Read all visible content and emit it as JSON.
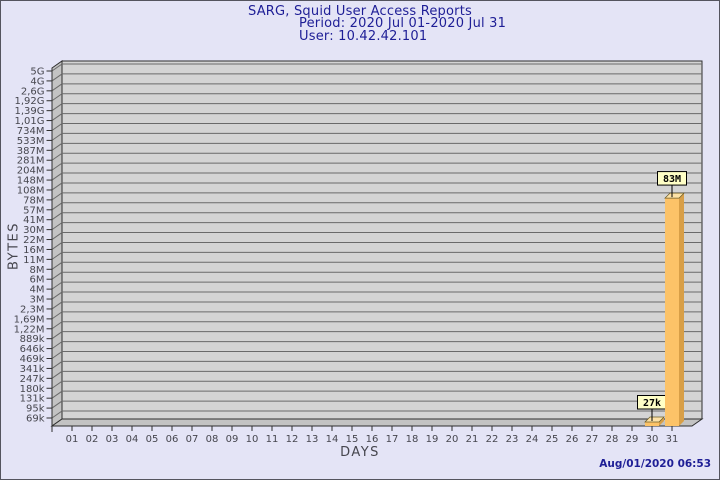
{
  "header": {
    "title": "SARG, Squid User Access Reports",
    "period": "Period: 2020 Jul 01-2020 Jul 31",
    "user": "User: 10.42.42.101"
  },
  "footer": {
    "timestamp": "Aug/01/2020 06:53"
  },
  "colors": {
    "page_background": "#E4E4F6",
    "title_text": "#1E1E96",
    "axis_text": "#46464E",
    "plot_back_wall": "#D4D4D4",
    "plot_side_wall": "#C3C3C3",
    "grid_line": "#6A6A6A",
    "wall_edge": "#2E2E2E",
    "bar_front": "#FCC368",
    "bar_side": "#D89F47",
    "bar_top": "#FDE2A7",
    "value_box_bg": "#FFFFC6",
    "value_box_border": "#000000"
  },
  "chart_data": {
    "type": "bar",
    "title": "SARG, Squid User Access Reports",
    "subtitle": "Period: 2020 Jul 01-2020 Jul 31",
    "user": "User: 10.42.42.101",
    "xlabel": "DAYS",
    "ylabel": "BYTES",
    "y_scale": "log",
    "y_range_bytes": [
      69000,
      5000000000
    ],
    "grid": "horizontal",
    "legend_position": "none",
    "y_tick_labels": [
      "5G",
      "4G",
      "2,6G",
      "1,92G",
      "1,39G",
      "1,01G",
      "734M",
      "533M",
      "387M",
      "281M",
      "204M",
      "148M",
      "108M",
      "78M",
      "57M",
      "41M",
      "30M",
      "22M",
      "16M",
      "11M",
      "8M",
      "6M",
      "4M",
      "3M",
      "2,3M",
      "1,69M",
      "1,22M",
      "889k",
      "646k",
      "469k",
      "341k",
      "247k",
      "180k",
      "131k",
      "95k",
      "69k"
    ],
    "x_categories": [
      "01",
      "02",
      "03",
      "04",
      "05",
      "06",
      "07",
      "08",
      "09",
      "10",
      "11",
      "12",
      "13",
      "14",
      "15",
      "16",
      "17",
      "18",
      "19",
      "20",
      "21",
      "22",
      "23",
      "24",
      "25",
      "26",
      "27",
      "28",
      "29",
      "30",
      "31"
    ],
    "series": [
      {
        "name": "bytes",
        "values": [
          0,
          0,
          0,
          0,
          0,
          0,
          0,
          0,
          0,
          0,
          0,
          0,
          0,
          0,
          0,
          0,
          0,
          0,
          0,
          0,
          0,
          0,
          0,
          0,
          0,
          0,
          0,
          0,
          0,
          27000,
          83000000
        ]
      }
    ],
    "bars": [
      {
        "x": "30",
        "value_bytes": 27000,
        "label": "27k"
      },
      {
        "x": "31",
        "value_bytes": 83000000,
        "label": "83M"
      }
    ]
  }
}
